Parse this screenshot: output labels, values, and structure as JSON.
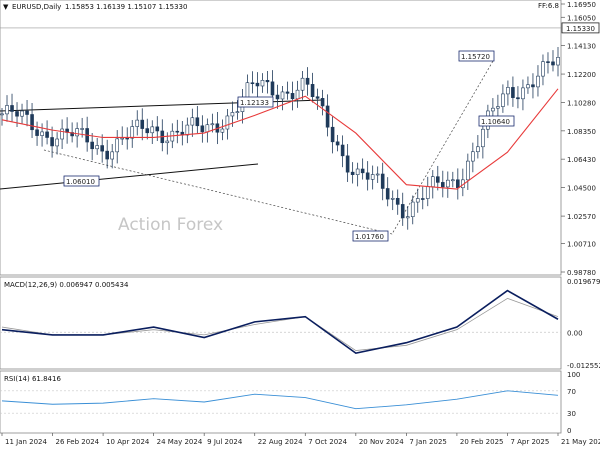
{
  "header": {
    "menu_glyph": "▼",
    "symbol_title": "EURUSD,Daily",
    "ohlc": "1.15853 1.16139 1.15107 1.15330",
    "top_right_label": "FF:6.8"
  },
  "watermark": "Action Forex",
  "price_axis": {
    "ticks": [
      "1.16950",
      "1.16050",
      "1.14130",
      "1.12200",
      "1.10280",
      "1.08350",
      "1.06430",
      "1.04500",
      "1.02570",
      "1.00710",
      "0.98780"
    ],
    "current_price_label": "1.15330"
  },
  "date_axis": [
    "11 Jan 2024",
    "26 Feb 2024",
    "10 Apr 2024",
    "24 May 2024",
    "9 Jul 2024",
    "22 Aug 2024",
    "7 Oct 2024",
    "20 Nov 2024",
    "7 Jan 2025",
    "20 Feb 2025",
    "7 Apr 2025",
    "21 May 2025"
  ],
  "annotations": [
    "1.15720",
    "1.12133",
    "1.10640",
    "1.06010",
    "1.01760"
  ],
  "macd_panel": {
    "label": "MACD(12,26,9) 0.006947 0.005434",
    "ticks": [
      "0.019679",
      "0.00",
      "-0.012552"
    ]
  },
  "rsi_panel": {
    "label": "RSI(14) 61.8416",
    "ticks": [
      "100",
      "70",
      "30",
      "0"
    ]
  },
  "colors": {
    "candles": "#1f3a5a",
    "ma": "#e83a3a",
    "macd": "#0a1e5e",
    "signal": "#999999",
    "rsi": "#3a8fd6",
    "trendline": "#111111",
    "grid": "#c8c8c8",
    "watermark": "#c6c6c6"
  },
  "chart_data": [
    {
      "type": "line",
      "title": "EURUSD,Daily",
      "x": [
        "11 Jan 2024",
        "26 Feb 2024",
        "10 Apr 2024",
        "24 May 2024",
        "9 Jul 2024",
        "22 Aug 2024",
        "7 Oct 2024",
        "20 Nov 2024",
        "7 Jan 2025",
        "20 Feb 2025",
        "7 Apr 2025",
        "21 May 2025"
      ],
      "series": [
        {
          "values": [
            1.095,
            1.082,
            1.073,
            1.085,
            1.082,
            1.112,
            1.113,
            1.055,
            1.032,
            1.052,
            1.11,
            1.128
          ]
        },
        {
          "values": [
            1.091,
            1.084,
            1.079,
            1.079,
            1.082,
            1.094,
            1.107,
            1.082,
            1.047,
            1.044,
            1.069,
            1.112
          ]
        }
      ],
      "ylim": [
        0.9878,
        1.1695
      ]
    },
    {
      "type": "line",
      "title": "MACD(12,26,9) 0.006947 0.005434",
      "x": [
        "11 Jan 2024",
        "26 Feb 2024",
        "10 Apr 2024",
        "24 May 2024",
        "9 Jul 2024",
        "22 Aug 2024",
        "7 Oct 2024",
        "20 Nov 2024",
        "7 Jan 2025",
        "20 Feb 2025",
        "7 Apr 2025",
        "21 May 2025"
      ],
      "series": [
        {
          "values": [
            0.001,
            -0.001,
            -0.001,
            0.002,
            -0.002,
            0.004,
            0.006,
            -0.008,
            -0.004,
            0.002,
            0.016,
            0.005
          ]
        },
        {
          "values": [
            0.002,
            -0.001,
            -0.001,
            0.001,
            -0.001,
            0.003,
            0.006,
            -0.007,
            -0.005,
            0.001,
            0.013,
            0.006
          ]
        }
      ],
      "ylim": [
        -0.012552,
        0.019679
      ]
    },
    {
      "type": "line",
      "title": "RSI(14) 61.8416",
      "x": [
        "11 Jan 2024",
        "26 Feb 2024",
        "10 Apr 2024",
        "24 May 2024",
        "9 Jul 2024",
        "22 Aug 2024",
        "7 Oct 2024",
        "20 Nov 2024",
        "7 Jan 2025",
        "20 Feb 2025",
        "7 Apr 2025",
        "21 May 2025"
      ],
      "series": [
        {
          "values": [
            52,
            46,
            48,
            56,
            50,
            64,
            58,
            38,
            45,
            55,
            70,
            62
          ]
        }
      ],
      "ylim": [
        0,
        100
      ]
    }
  ]
}
